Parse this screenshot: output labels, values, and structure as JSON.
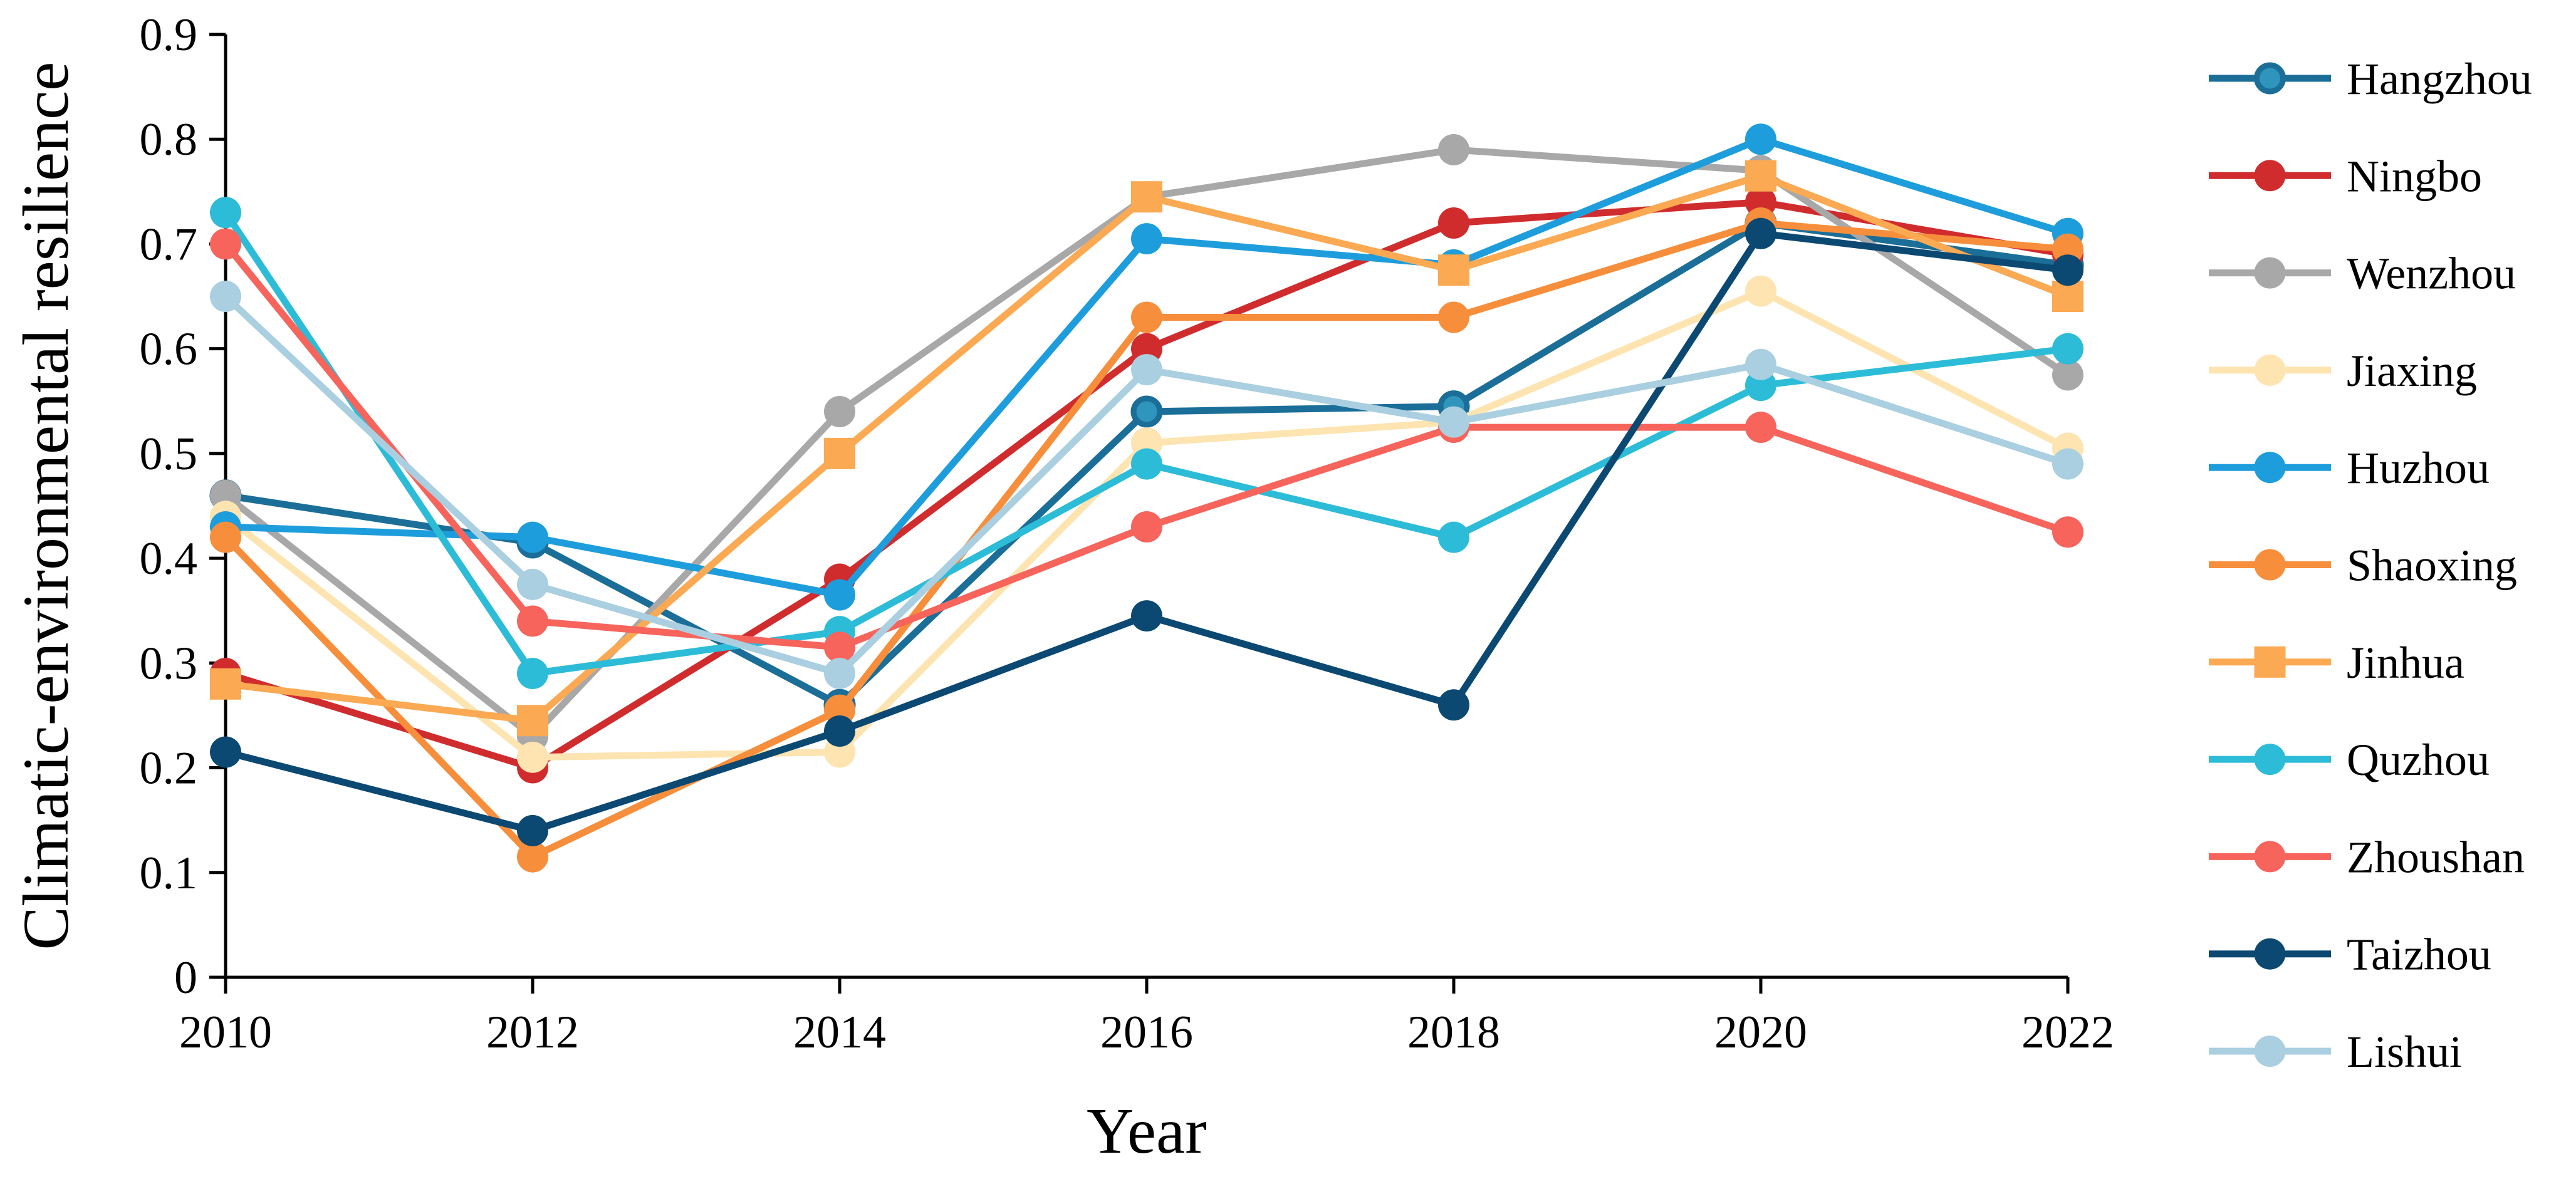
{
  "chart_data": {
    "type": "line",
    "title": "",
    "xlabel": "Year",
    "ylabel": "Climatic-environmental resilience",
    "x": [
      2010,
      2012,
      2014,
      2016,
      2018,
      2020,
      2022
    ],
    "x_tick_labels": [
      "2010",
      "2012",
      "2014",
      "2016",
      "2018",
      "2020",
      "2022"
    ],
    "ylim": [
      0,
      0.9
    ],
    "y_ticks": [
      0,
      0.1,
      0.2,
      0.3,
      0.4,
      0.5,
      0.6,
      0.7,
      0.8,
      0.9
    ],
    "y_tick_labels": [
      "0",
      "0.1",
      "0.2",
      "0.3",
      "0.4",
      "0.5",
      "0.6",
      "0.7",
      "0.8",
      "0.9"
    ],
    "grid": false,
    "legend_position": "right",
    "series": [
      {
        "name": "Hangzhou",
        "color": "#1a6e98",
        "marker": "circle-ring",
        "values": [
          0.46,
          0.415,
          0.26,
          0.54,
          0.545,
          0.72,
          0.68
        ]
      },
      {
        "name": "Ningbo",
        "color": "#d02c2e",
        "marker": "circle",
        "values": [
          0.29,
          0.2,
          0.38,
          0.6,
          0.72,
          0.74,
          0.69
        ]
      },
      {
        "name": "Wenzhou",
        "color": "#a8a8a8",
        "marker": "circle",
        "values": [
          0.46,
          0.23,
          0.54,
          0.745,
          0.79,
          0.77,
          0.575
        ]
      },
      {
        "name": "Jiaxing",
        "color": "#fde4b0",
        "marker": "circle",
        "values": [
          0.44,
          0.21,
          0.215,
          0.51,
          0.53,
          0.655,
          0.505
        ]
      },
      {
        "name": "Huzhou",
        "color": "#1e9ddc",
        "marker": "circle",
        "values": [
          0.43,
          0.42,
          0.365,
          0.705,
          0.68,
          0.8,
          0.71
        ]
      },
      {
        "name": "Shaoxing",
        "color": "#f78e3b",
        "marker": "circle",
        "values": [
          0.42,
          0.115,
          0.255,
          0.63,
          0.63,
          0.72,
          0.695
        ]
      },
      {
        "name": "Jinhua",
        "color": "#fba952",
        "marker": "square",
        "values": [
          0.28,
          0.245,
          0.5,
          0.745,
          0.675,
          0.765,
          0.65
        ]
      },
      {
        "name": "Quzhou",
        "color": "#2dbcd8",
        "marker": "circle",
        "values": [
          0.73,
          0.29,
          0.33,
          0.49,
          0.42,
          0.565,
          0.6
        ]
      },
      {
        "name": "Zhoushan",
        "color": "#f7645c",
        "marker": "circle",
        "values": [
          0.7,
          0.34,
          0.315,
          0.43,
          0.525,
          0.525,
          0.425
        ]
      },
      {
        "name": "Taizhou",
        "color": "#0b4872",
        "marker": "circle",
        "values": [
          0.215,
          0.14,
          0.235,
          0.345,
          0.26,
          0.71,
          0.675
        ]
      },
      {
        "name": "Lishui",
        "color": "#a9cfe0",
        "marker": "circle",
        "values": [
          0.65,
          0.375,
          0.29,
          0.58,
          0.53,
          0.585,
          0.49
        ]
      }
    ]
  }
}
